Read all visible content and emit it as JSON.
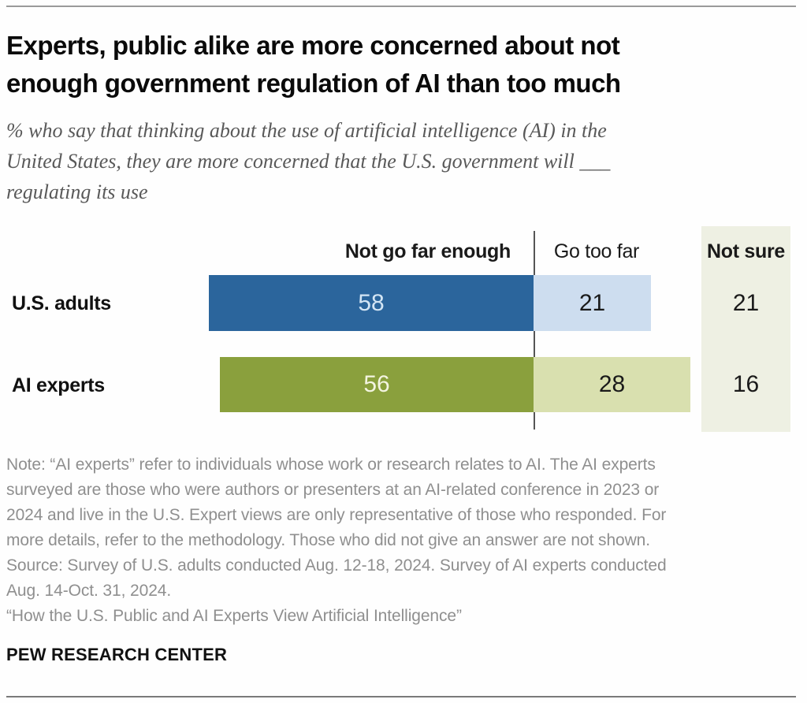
{
  "header": {
    "title_lines": [
      "Experts, public alike are more concerned about not",
      "enough government regulation of AI than too much"
    ],
    "subtitle_lines": [
      "% who say that thinking about the use of artificial intelligence (AI) in the",
      "United States, they are more concerned that the U.S. government will ___",
      "regulating its use"
    ]
  },
  "chart_data": {
    "type": "bar",
    "orientation": "horizontal",
    "title": "Experts, public alike are more concerned about not enough government regulation of AI than too much",
    "subtitle": "% who say that thinking about the use of artificial intelligence (AI) in the United States, they are more concerned that the U.S. government will ___ regulating its use",
    "unit": "percent",
    "categories": [
      "U.S. adults",
      "AI experts"
    ],
    "series": [
      {
        "name": "Not go far enough",
        "values": [
          58,
          56
        ]
      },
      {
        "name": "Go too far",
        "values": [
          21,
          28
        ]
      },
      {
        "name": "Not sure",
        "values": [
          21,
          16
        ]
      }
    ],
    "layout_hints": {
      "axis_hidden": true,
      "column_headers_as_legend": true,
      "divider_between": [
        "Not go far enough",
        "Go too far"
      ],
      "not_sure_shown_in_side_panel": true
    }
  },
  "colors": {
    "dark_blue": "#2b659c",
    "light_blue": "#cdddef",
    "olive_green": "#8aa03d",
    "light_green": "#d9e0af",
    "not_sure_panel": "#eef0e3",
    "value_on_dark_blue": "#d3e5f4",
    "value_on_olive": "#f3f4e0",
    "value_dark": "#1a1a1a"
  },
  "footer": {
    "note_lines": [
      "Note: “AI experts” refer to individuals whose work or research relates to AI. The AI experts",
      "surveyed are those who were authors or presenters at an AI-related conference in 2023 or",
      "2024 and live in the U.S. Expert views are only representative of those who responded. For",
      "more details, refer to the methodology. Those who did not give an answer are not shown.",
      "Source: Survey of U.S. adults conducted Aug. 12-18, 2024. Survey of AI experts conducted",
      "Aug. 14-Oct. 31, 2024.",
      "“How the U.S. Public and AI Experts View Artificial Intelligence”"
    ],
    "brand": "PEW RESEARCH CENTER"
  }
}
